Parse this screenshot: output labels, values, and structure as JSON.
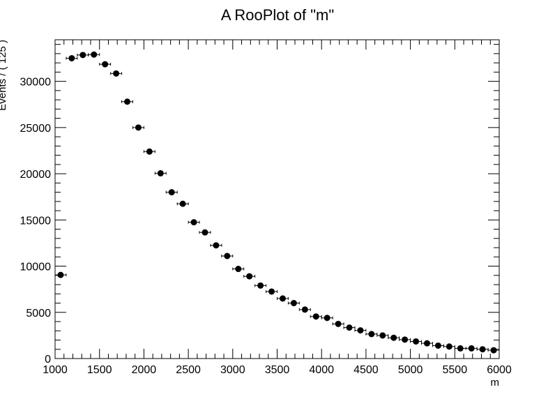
{
  "chart_data": {
    "type": "scatter",
    "title": "A RooPlot of \"m\"",
    "xlabel": "m",
    "ylabel": "Events / ( 125 )",
    "xlim": [
      1000,
      6000
    ],
    "ylim": [
      0,
      34500
    ],
    "x_ticks": [
      1000,
      1500,
      2000,
      2500,
      3000,
      3500,
      4000,
      4500,
      5000,
      5500,
      6000
    ],
    "y_ticks": [
      0,
      5000,
      10000,
      15000,
      20000,
      25000,
      30000
    ],
    "bin_width": 125,
    "grid": false,
    "series": [
      {
        "x": [
          1062.5,
          1187.5,
          1312.5,
          1437.5,
          1562.5,
          1687.5,
          1812.5,
          1937.5,
          2062.5,
          2187.5,
          2312.5,
          2437.5,
          2562.5,
          2687.5,
          2812.5,
          2937.5,
          3062.5,
          3187.5,
          3312.5,
          3437.5,
          3562.5,
          3687.5,
          3812.5,
          3937.5,
          4062.5,
          4187.5,
          4312.5,
          4437.5,
          4562.5,
          4687.5,
          4812.5,
          4937.5,
          5062.5,
          5187.5,
          5312.5,
          5437.5,
          5562.5,
          5687.5,
          5812.5,
          5937.5
        ],
        "y": [
          9050,
          32500,
          32850,
          32900,
          31850,
          30850,
          27800,
          25000,
          22400,
          20050,
          18000,
          16750,
          14750,
          13650,
          12250,
          11100,
          9700,
          8900,
          7900,
          7250,
          6500,
          6000,
          5300,
          4550,
          4400,
          3750,
          3350,
          3050,
          2650,
          2500,
          2250,
          2050,
          1850,
          1650,
          1400,
          1300,
          1100,
          1100,
          1000,
          900
        ]
      }
    ]
  }
}
